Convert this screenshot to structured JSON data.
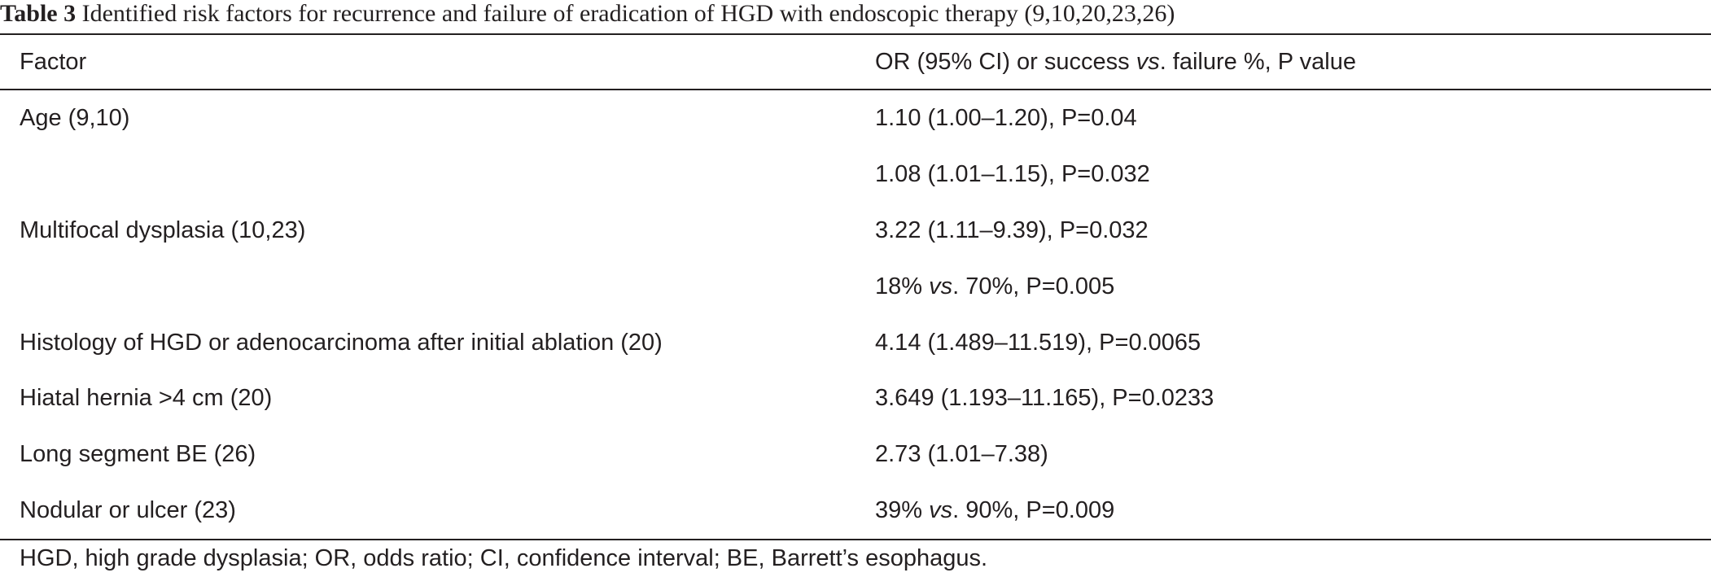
{
  "caption": {
    "label": "Table 3",
    "text": " Identified risk factors for recurrence and failure of eradication of HGD with endoscopic therapy (9,10,20,23,26)"
  },
  "header": {
    "factor": "Factor",
    "value_pre": "OR (95% CI) or success ",
    "value_vs": "vs",
    "value_post": ". failure %, P value"
  },
  "rows": [
    {
      "factor": "Age (9,10)",
      "value": "1.10 (1.00–1.20), P=0.04"
    },
    {
      "factor": "",
      "value": "1.08 (1.01–1.15), P=0.032"
    },
    {
      "factor": "Multifocal dysplasia (10,23)",
      "value": "3.22 (1.11–9.39), P=0.032"
    },
    {
      "factor": "",
      "value_pre": "18% ",
      "value_vs": "vs",
      "value_post": ". 70%, P=0.005"
    },
    {
      "factor": "Histology of HGD or adenocarcinoma after initial ablation (20)",
      "value": "4.14 (1.489–11.519), P=0.0065"
    },
    {
      "factor": "Hiatal hernia >4 cm (20)",
      "value": "3.649 (1.193–11.165), P=0.0233"
    },
    {
      "factor": "Long segment BE (26)",
      "value": "2.73 (1.01–7.38)"
    },
    {
      "factor": "Nodular or ulcer (23)",
      "value_pre": "39% ",
      "value_vs": "vs",
      "value_post": ". 90%, P=0.009"
    }
  ],
  "footnote": "HGD, high grade dysplasia; OR, odds ratio; CI, confidence interval; BE, Barrett’s esophagus."
}
